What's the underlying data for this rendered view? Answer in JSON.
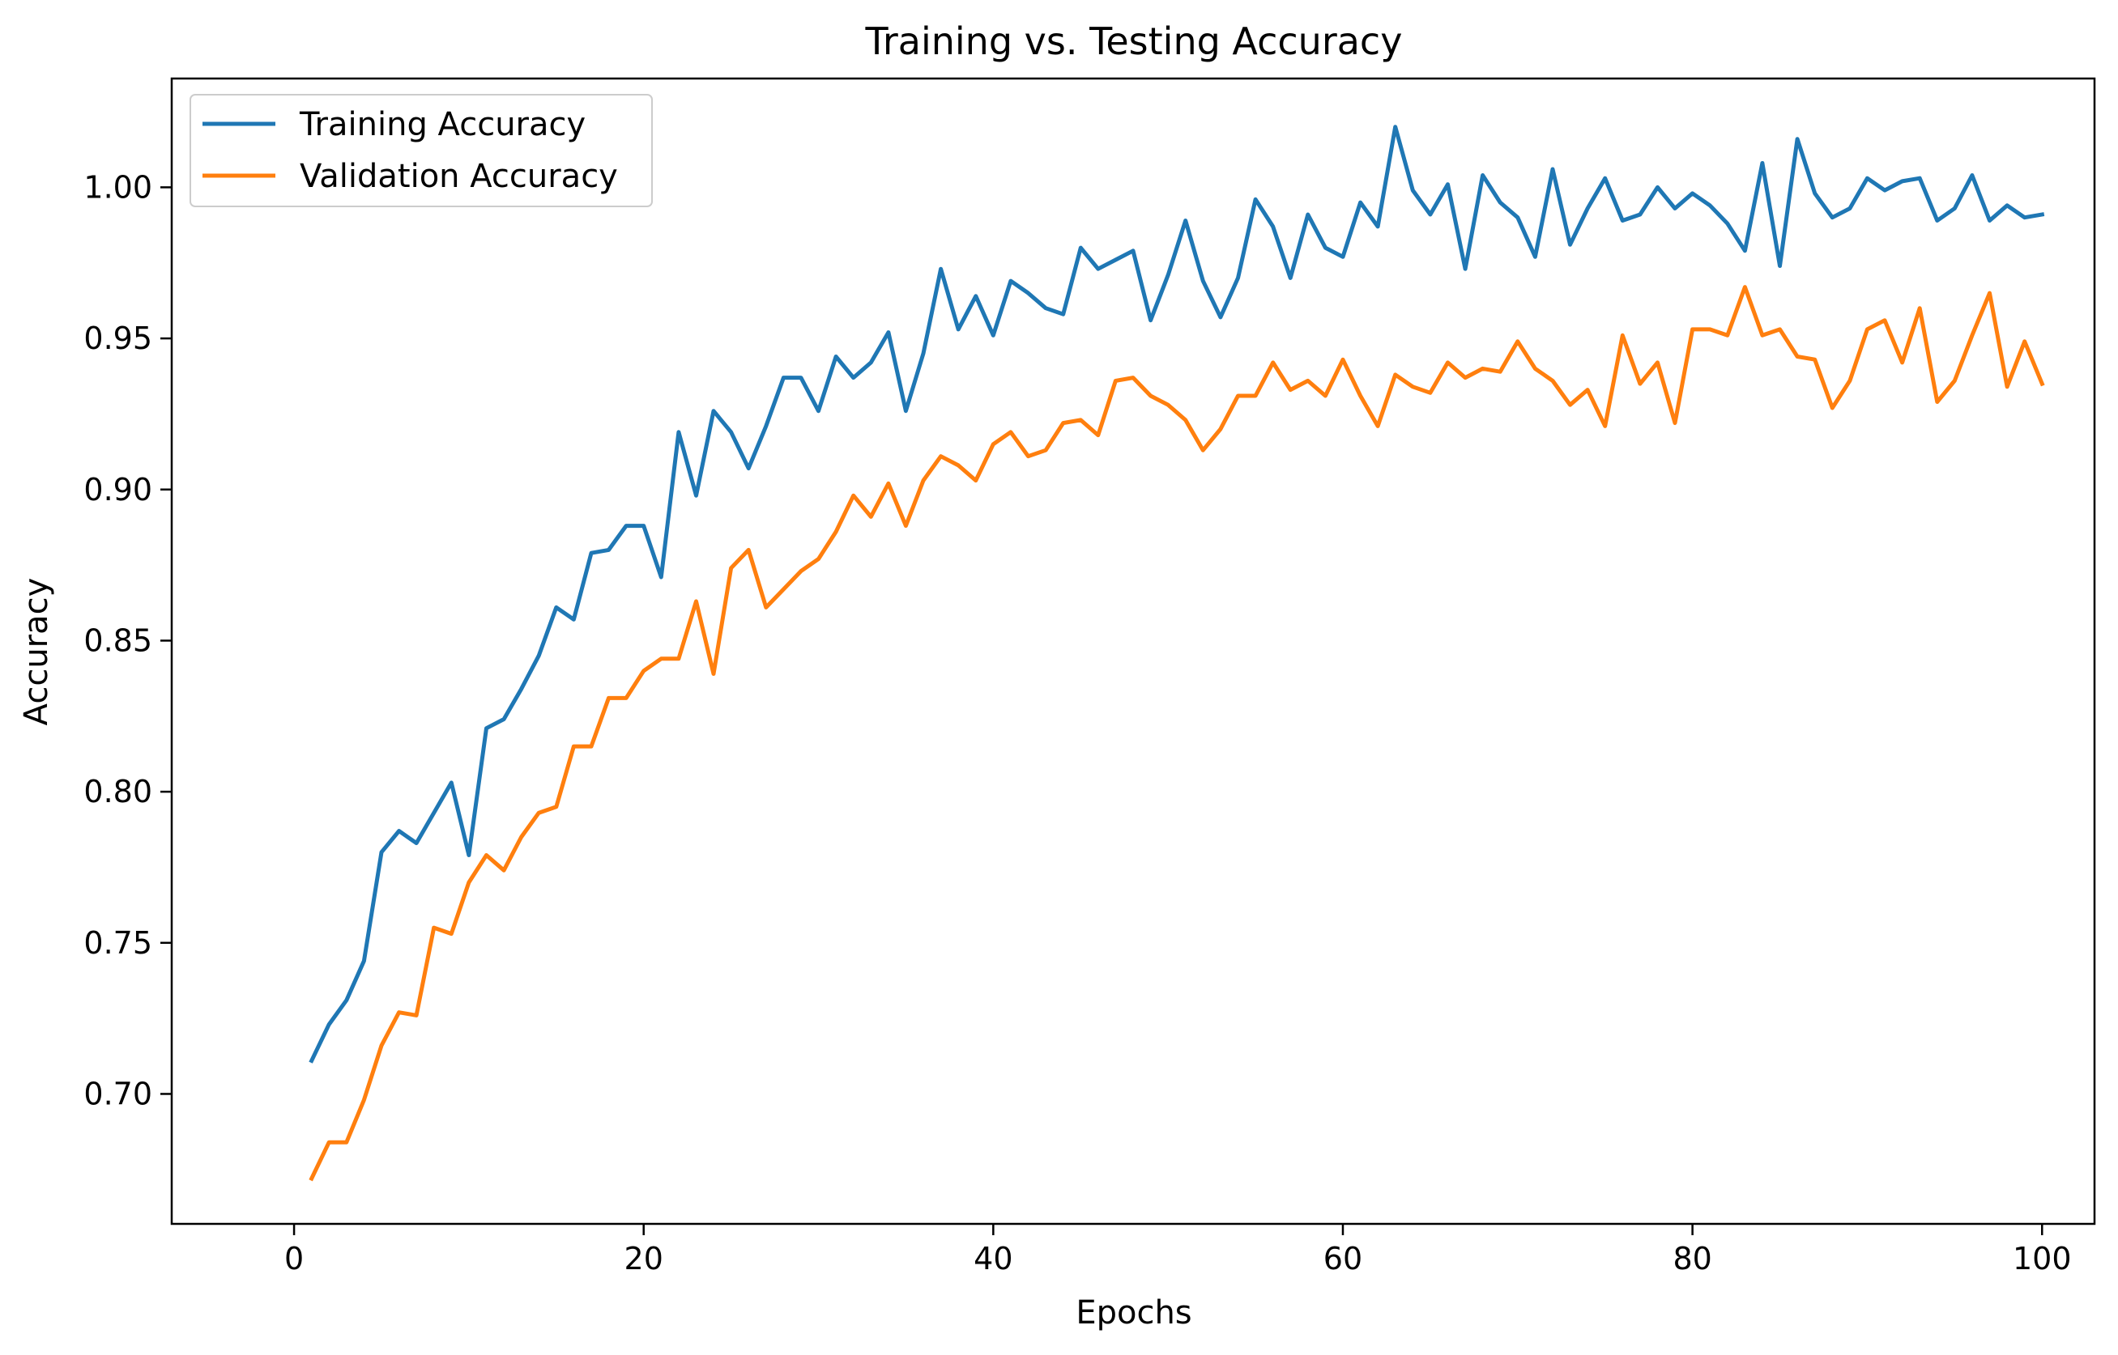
{
  "chart_data": {
    "type": "line",
    "title": "Training vs. Testing Accuracy",
    "xlabel": "Epochs",
    "ylabel": "Accuracy",
    "xlim": [
      -7,
      103
    ],
    "ylim": [
      0.657,
      1.036
    ],
    "xticks": [
      0,
      20,
      40,
      60,
      80,
      100
    ],
    "xtick_labels": [
      "0",
      "20",
      "40",
      "60",
      "80",
      "100"
    ],
    "yticks": [
      0.7,
      0.75,
      0.8,
      0.85,
      0.9,
      0.95,
      1.0
    ],
    "ytick_labels": [
      "0.70",
      "0.75",
      "0.80",
      "0.85",
      "0.90",
      "0.95",
      "1.00"
    ],
    "grid": false,
    "legend_position": "upper-left",
    "x": [
      1,
      2,
      3,
      4,
      5,
      6,
      7,
      8,
      9,
      10,
      11,
      12,
      13,
      14,
      15,
      16,
      17,
      18,
      19,
      20,
      21,
      22,
      23,
      24,
      25,
      26,
      27,
      28,
      29,
      30,
      31,
      32,
      33,
      34,
      35,
      36,
      37,
      38,
      39,
      40,
      41,
      42,
      43,
      44,
      45,
      46,
      47,
      48,
      49,
      50,
      51,
      52,
      53,
      54,
      55,
      56,
      57,
      58,
      59,
      60,
      61,
      62,
      63,
      64,
      65,
      66,
      67,
      68,
      69,
      70,
      71,
      72,
      73,
      74,
      75,
      76,
      77,
      78,
      79,
      80,
      81,
      82,
      83,
      84,
      85,
      86,
      87,
      88,
      89,
      90,
      91,
      92,
      93,
      94,
      95,
      96,
      97,
      98,
      99,
      100
    ],
    "series": [
      {
        "name": "Training Accuracy",
        "color": "#1f77b4",
        "values": [
          0.711,
          0.723,
          0.731,
          0.744,
          0.78,
          0.787,
          0.783,
          0.793,
          0.803,
          0.779,
          0.821,
          0.824,
          0.834,
          0.845,
          0.861,
          0.857,
          0.879,
          0.88,
          0.888,
          0.888,
          0.871,
          0.919,
          0.898,
          0.926,
          0.919,
          0.907,
          0.921,
          0.937,
          0.937,
          0.926,
          0.944,
          0.937,
          0.942,
          0.952,
          0.926,
          0.945,
          0.973,
          0.953,
          0.964,
          0.951,
          0.969,
          0.965,
          0.96,
          0.958,
          0.98,
          0.973,
          0.976,
          0.979,
          0.956,
          0.971,
          0.989,
          0.969,
          0.957,
          0.97,
          0.996,
          0.987,
          0.97,
          0.991,
          0.98,
          0.977,
          0.995,
          0.987,
          1.02,
          0.999,
          0.991,
          1.001,
          0.973,
          1.004,
          0.995,
          0.99,
          0.977,
          1.006,
          0.981,
          0.993,
          1.003,
          0.989,
          0.991,
          1.0,
          0.993,
          0.998,
          0.994,
          0.988,
          0.979,
          1.008,
          0.974,
          1.016,
          0.998,
          0.99,
          0.993,
          1.003,
          0.999,
          1.002,
          1.003,
          0.989,
          0.993,
          1.004,
          0.989,
          0.994,
          0.99,
          0.991
        ]
      },
      {
        "name": "Validation Accuracy",
        "color": "#ff7f0e",
        "values": [
          0.672,
          0.684,
          0.684,
          0.698,
          0.716,
          0.727,
          0.726,
          0.755,
          0.753,
          0.77,
          0.779,
          0.774,
          0.785,
          0.793,
          0.795,
          0.815,
          0.815,
          0.831,
          0.831,
          0.84,
          0.844,
          0.844,
          0.863,
          0.839,
          0.874,
          0.88,
          0.861,
          0.867,
          0.873,
          0.877,
          0.886,
          0.898,
          0.891,
          0.902,
          0.888,
          0.903,
          0.911,
          0.908,
          0.903,
          0.915,
          0.919,
          0.911,
          0.913,
          0.922,
          0.923,
          0.918,
          0.936,
          0.937,
          0.931,
          0.928,
          0.923,
          0.913,
          0.92,
          0.931,
          0.931,
          0.942,
          0.933,
          0.936,
          0.931,
          0.943,
          0.931,
          0.921,
          0.938,
          0.934,
          0.932,
          0.942,
          0.937,
          0.94,
          0.939,
          0.949,
          0.94,
          0.936,
          0.928,
          0.933,
          0.921,
          0.951,
          0.935,
          0.942,
          0.922,
          0.953,
          0.953,
          0.951,
          0.967,
          0.951,
          0.953,
          0.944,
          0.943,
          0.927,
          0.936,
          0.953,
          0.956,
          0.942,
          0.96,
          0.929,
          0.936,
          0.951,
          0.965,
          0.934,
          0.949,
          0.935
        ]
      }
    ]
  }
}
